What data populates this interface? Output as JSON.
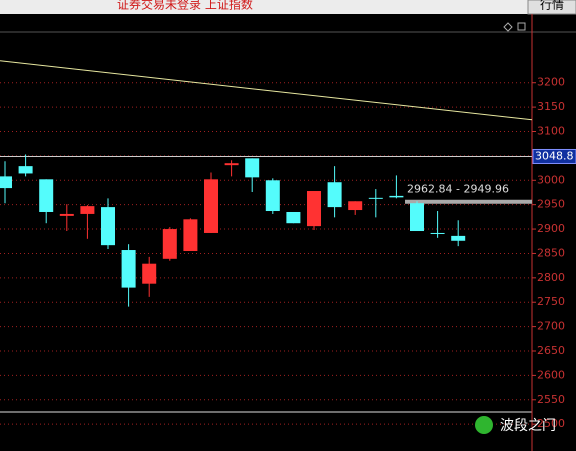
{
  "header": {
    "status": "证券交易未登录 上证指数",
    "button": "行情"
  },
  "watermark": "波段之门",
  "chart_data": {
    "type": "candlestick",
    "open": [
      3008,
      3029,
      3002,
      2927,
      2931,
      2945,
      2857,
      2788,
      2839,
      2855,
      2892,
      3031,
      3045,
      3000,
      2935,
      2906,
      2996,
      2939,
      2964,
      2968,
      2953,
      2892,
      2886
    ],
    "high": [
      3039,
      3053,
      3002,
      2951,
      2949,
      2963,
      2869,
      2843,
      2904,
      2922,
      3016,
      3041,
      3045,
      3004,
      2935,
      2978,
      3029,
      2957,
      2982,
      3010,
      2957,
      2937,
      2918
    ],
    "low": [
      2953,
      3008,
      2912,
      2896,
      2880,
      2859,
      2741,
      2761,
      2835,
      2855,
      2892,
      3008,
      2976,
      2931,
      2912,
      2898,
      2924,
      2929,
      2924,
      2963,
      2896,
      2882,
      2865
    ],
    "close": [
      2984,
      3014,
      2935,
      2931,
      2947,
      2867,
      2780,
      2829,
      2900,
      2920,
      3002,
      3035,
      3006,
      2937,
      2912,
      2978,
      2945,
      2957,
      2962,
      2965,
      2896,
      2890,
      2876
    ],
    "up_color": "#ff3232",
    "down_color": "#54fcfc",
    "ylim": [
      2445,
      3304
    ],
    "yticks": [
      3200,
      3150,
      3100,
      3050,
      3000,
      2950,
      2900,
      2850,
      2800,
      2750,
      2700,
      2650,
      2600,
      2550,
      2500
    ],
    "grid": true,
    "current": 3048.8,
    "trendline": [
      3245,
      3124
    ],
    "annotation": {
      "text": "2962.84 - 2949.96",
      "value": 2956
    }
  }
}
